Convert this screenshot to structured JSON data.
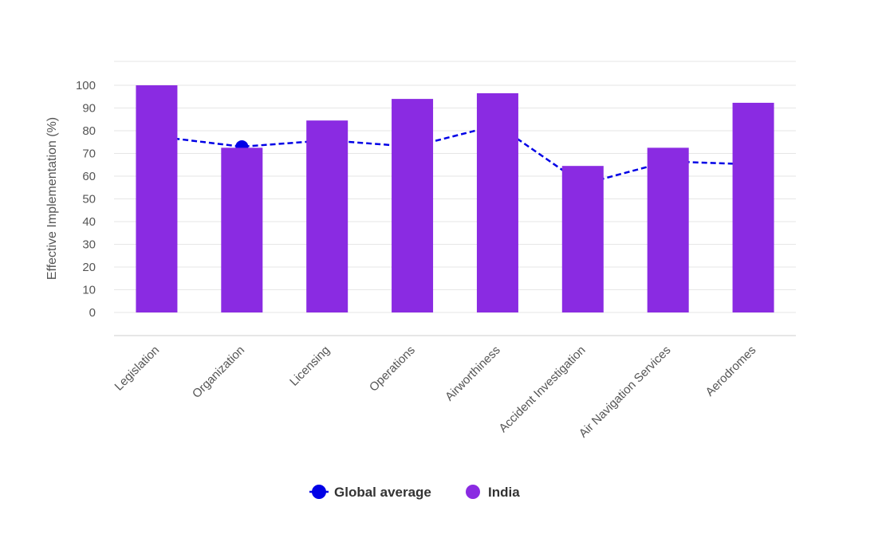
{
  "chart_data": {
    "type": "bar",
    "title": "",
    "xlabel": "",
    "ylabel": "Effective Implementation (%)",
    "ylim": [
      0,
      100
    ],
    "yticks": [
      0,
      10,
      20,
      30,
      40,
      50,
      60,
      70,
      80,
      90,
      100
    ],
    "grid": true,
    "legend_position": "bottom-center",
    "categories": [
      "Legislation",
      "Organization",
      "Licensing",
      "Operations",
      "Airworthiness",
      "Accident Investigation",
      "Air Navigation Services",
      "Aerodromes"
    ],
    "series": [
      {
        "name": "India",
        "type": "bar",
        "color": "#8a2be2",
        "values": [
          100,
          72.5,
          84.5,
          94,
          96.5,
          64.5,
          72.5,
          92.3
        ]
      },
      {
        "name": "Global average",
        "type": "line",
        "style": "dashed",
        "color": "#0000e6",
        "values": [
          77.5,
          73,
          75.8,
          73,
          82.5,
          56.5,
          66.5,
          65.2
        ]
      }
    ]
  }
}
